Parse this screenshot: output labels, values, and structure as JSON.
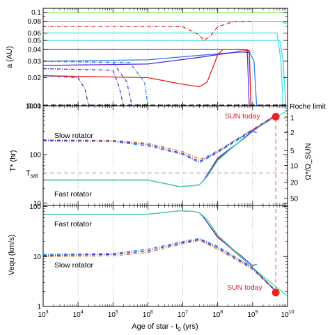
{
  "chart_data": [
    {
      "type": "line",
      "panel": "top",
      "ylabel": "a (AU)",
      "yscale": "log",
      "ylim": [
        0.01,
        0.11
      ],
      "yticks": [
        "0.1",
        "0.08",
        "0.06",
        "0.05",
        "0.04",
        "0.03",
        "0.02",
        "0.01"
      ],
      "ytick_values": [
        0.1,
        0.08,
        0.06,
        0.05,
        0.04,
        0.03,
        0.02,
        0.01
      ],
      "annotations": [
        "Roche limit"
      ],
      "series": [
        {
          "color": "#7cf04c",
          "style": "solid",
          "x": [
            1000,
            1000000000.0,
            10000000000.0
          ],
          "y": [
            0.1,
            0.1,
            0.1
          ]
        },
        {
          "color": "#44e0a0",
          "style": "solid",
          "x": [
            1000,
            1000000000.0,
            6000000000.0,
            10000000000.0
          ],
          "y": [
            0.08,
            0.08,
            0.08,
            0.075
          ]
        },
        {
          "color": "#38e4e4",
          "style": "solid",
          "x": [
            1000,
            3000000000.0,
            5000000000.0,
            6500000000.0,
            7500000000.0
          ],
          "y": [
            0.06,
            0.06,
            0.06,
            0.03,
            0.01
          ]
        },
        {
          "color": "#38d8f0",
          "style": "solid",
          "x": [
            1000,
            3000000000.0,
            6000000000.0,
            7500000000.0,
            9000000000.0
          ],
          "y": [
            0.05,
            0.05,
            0.05,
            0.03,
            0.01
          ]
        },
        {
          "color": "#2f7ef0",
          "style": "solid",
          "x": [
            1000,
            1000000.0,
            100000000.0,
            800000000.0,
            1100000000.0,
            1300000000.0
          ],
          "y": [
            0.03,
            0.031,
            0.036,
            0.038,
            0.03,
            0.01
          ]
        },
        {
          "color": "#4e3ce6",
          "style": "solid",
          "x": [
            1000,
            1000000.0,
            30000000.0,
            300000000.0,
            700000000.0,
            800000000.0
          ],
          "y": [
            0.04,
            0.04,
            0.04,
            0.04,
            0.04,
            0.01
          ]
        },
        {
          "color": "#5b20d4",
          "style": "solid",
          "x": [
            1000,
            1000000.0,
            30000000.0,
            400000000.0,
            800000000.0,
            900000000.0
          ],
          "y": [
            0.027,
            0.028,
            0.033,
            0.038,
            0.037,
            0.01
          ]
        },
        {
          "color": "#e02020",
          "style": "solid",
          "x": [
            1000,
            1000000.0,
            10000000.0,
            30000000.0,
            50000000.0,
            100000000.0,
            140000000.0,
            300000000.0,
            800000000.0,
            900000000.0
          ],
          "y": [
            0.021,
            0.02,
            0.017,
            0.016,
            0.018,
            0.035,
            0.04,
            0.04,
            0.039,
            0.01
          ]
        },
        {
          "color": "#e02020",
          "style": "dashdot",
          "x": [
            1000,
            10000000.0,
            30000000.0,
            40000000.0,
            60000000.0,
            100000000.0,
            300000000.0,
            1000000000.0
          ],
          "y": [
            0.07,
            0.07,
            0.057,
            0.05,
            0.055,
            0.07,
            0.08,
            0.08
          ]
        },
        {
          "color": "#7028a8",
          "style": "dashdot",
          "x": [
            1000,
            10000.0,
            16000.0,
            20000.0
          ],
          "y": [
            0.021,
            0.02,
            0.015,
            0.01
          ]
        },
        {
          "color": "#5020c0",
          "style": "dashdot",
          "x": [
            1000,
            100000.0,
            150000.0,
            200000.0
          ],
          "y": [
            0.025,
            0.024,
            0.016,
            0.01
          ]
        },
        {
          "color": "#3840d8",
          "style": "dashdot",
          "x": [
            1000,
            100000.0,
            250000.0,
            350000.0
          ],
          "y": [
            0.03,
            0.029,
            0.018,
            0.01
          ]
        },
        {
          "color": "#2f7ef0",
          "style": "dashdot",
          "x": [
            1000,
            300000.0,
            800000.0,
            1000000.0
          ],
          "y": [
            0.03,
            0.029,
            0.018,
            0.01
          ]
        }
      ]
    },
    {
      "type": "line",
      "panel": "middle",
      "ylabel": "T* (hr)",
      "y2label": "Ω*/Ω_SUN",
      "yscale": "log",
      "ylim": [
        9,
        1000
      ],
      "yticks": [
        "10",
        "100",
        "1000"
      ],
      "ytick_values": [
        10,
        100,
        1000
      ],
      "y2ticks": [
        "1",
        "2",
        "5",
        "10",
        "20",
        "50"
      ],
      "annotations": [
        "Slow rotator",
        "Fast rotator",
        "SUN today",
        "Roche limit"
      ],
      "tsat_label": "T",
      "tsat_sub": "sat",
      "tsat_value": 42,
      "sun_today": {
        "x": 4600000000.0,
        "y": 600
      },
      "series": [
        {
          "color": "#e02020",
          "style": "solid",
          "x": [
            1000,
            1000000.0,
            8000000.0,
            20000000.0,
            30000000.0,
            40000000.0,
            100000000.0,
            1000000000.0,
            4600000000.0
          ],
          "y": [
            30,
            30,
            22,
            23,
            24,
            30,
            80,
            300,
            650
          ]
        },
        {
          "color": "#3848e8",
          "style": "solid",
          "x": [
            1000,
            1000000.0,
            8000000.0,
            20000000.0,
            30000000.0,
            40000000.0,
            100000000.0,
            500000000.0,
            1000000000.0,
            1300000000.0
          ],
          "y": [
            30,
            30,
            22,
            23,
            24,
            30,
            85,
            200,
            300,
            280
          ]
        },
        {
          "color": "#44e0a0",
          "style": "solid",
          "x": [
            1000,
            1000000.0,
            8000000.0,
            20000000.0,
            30000000.0,
            50000000.0,
            100000000.0,
            1000000000.0,
            10000000000.0
          ],
          "y": [
            30,
            30,
            22,
            23,
            24,
            35,
            75,
            320,
            800
          ]
        },
        {
          "color": "#c87828",
          "style": "dashdot",
          "x": [
            1000,
            100000.0,
            1000000.0,
            10000000.0,
            30000000.0,
            40000000.0,
            100000000.0,
            1000000000.0,
            4600000000.0
          ],
          "y": [
            200,
            195,
            170,
            115,
            80,
            85,
            120,
            330,
            650
          ]
        },
        {
          "color": "#5020c0",
          "style": "dashdot",
          "x": [
            1000,
            100000.0,
            1000000.0,
            10000000.0,
            30000000.0,
            40000000.0,
            100000000.0,
            1000000000.0,
            4600000000.0
          ],
          "y": [
            195,
            190,
            160,
            105,
            72,
            80,
            115,
            320,
            640
          ]
        },
        {
          "color": "#2f7ef0",
          "style": "dashdot",
          "x": [
            1000,
            100000.0,
            1000000.0,
            10000000.0,
            30000000.0,
            40000000.0,
            100000000.0,
            1000000000.0,
            4600000000.0
          ],
          "y": [
            190,
            185,
            150,
            100,
            68,
            76,
            110,
            310,
            620
          ]
        }
      ]
    },
    {
      "type": "line",
      "panel": "bottom",
      "ylabel": "Vequ (km/s)",
      "xlabel": "Age of star - t",
      "xlabel_sub": "0",
      "xlabel_units": "(yrs)",
      "yscale": "log",
      "xscale": "log",
      "ylim": [
        1,
        105
      ],
      "xlim": [
        1000,
        10000000000.0
      ],
      "yticks": [
        "1",
        "10",
        "100"
      ],
      "ytick_values": [
        1,
        10,
        100
      ],
      "xticks_base": "10",
      "xticks_exp": [
        "3",
        "4",
        "5",
        "6",
        "7",
        "8",
        "9",
        "10"
      ],
      "xtick_values": [
        1000,
        10000,
        100000,
        1000000,
        10000000,
        100000000,
        1000000000,
        10000000000
      ],
      "annotations": [
        "Fast rotator",
        "Slow rotator",
        "SUN today"
      ],
      "sun_today": {
        "x": 4600000000.0,
        "y": 1.9
      },
      "series": [
        {
          "color": "#e02020",
          "style": "solid",
          "x": [
            1000,
            1000000.0,
            8000000.0,
            20000000.0,
            30000000.0,
            40000000.0,
            100000000.0,
            1000000000.0,
            4600000000.0
          ],
          "y": [
            70,
            70,
            82,
            80,
            75,
            60,
            25,
            6,
            2
          ]
        },
        {
          "color": "#3848e8",
          "style": "solid",
          "x": [
            1000,
            1000000.0,
            8000000.0,
            20000000.0,
            30000000.0,
            40000000.0,
            100000000.0,
            500000000.0,
            1000000000.0,
            1300000000.0
          ],
          "y": [
            70,
            70,
            82,
            80,
            75,
            60,
            24,
            10,
            6.5,
            7
          ]
        },
        {
          "color": "#44e0a0",
          "style": "solid",
          "x": [
            1000,
            1000000.0,
            8000000.0,
            20000000.0,
            30000000.0,
            50000000.0,
            100000000.0,
            1000000000.0,
            10000000000.0
          ],
          "y": [
            70,
            70,
            82,
            80,
            75,
            55,
            27,
            6,
            1.6
          ]
        },
        {
          "color": "#c87828",
          "style": "dashdot",
          "x": [
            1000,
            100000.0,
            1000000.0,
            10000000.0,
            30000000.0,
            40000000.0,
            100000000.0,
            1000000000.0,
            4600000000.0
          ],
          "y": [
            10,
            10.3,
            12,
            18,
            21,
            19,
            14,
            5.5,
            2
          ]
        },
        {
          "color": "#5020c0",
          "style": "dashdot",
          "x": [
            1000,
            100000.0,
            1000000.0,
            10000000.0,
            30000000.0,
            40000000.0,
            100000000.0,
            1000000000.0,
            4600000000.0
          ],
          "y": [
            10.5,
            11,
            13,
            19,
            22,
            20,
            15,
            5.8,
            2
          ]
        },
        {
          "color": "#2f7ef0",
          "style": "dashdot",
          "x": [
            1000,
            100000.0,
            1000000.0,
            10000000.0,
            30000000.0,
            40000000.0,
            100000000.0,
            1000000000.0,
            4600000000.0
          ],
          "y": [
            11,
            11.5,
            14,
            20,
            23,
            21,
            16,
            6,
            2.1
          ]
        }
      ]
    }
  ]
}
